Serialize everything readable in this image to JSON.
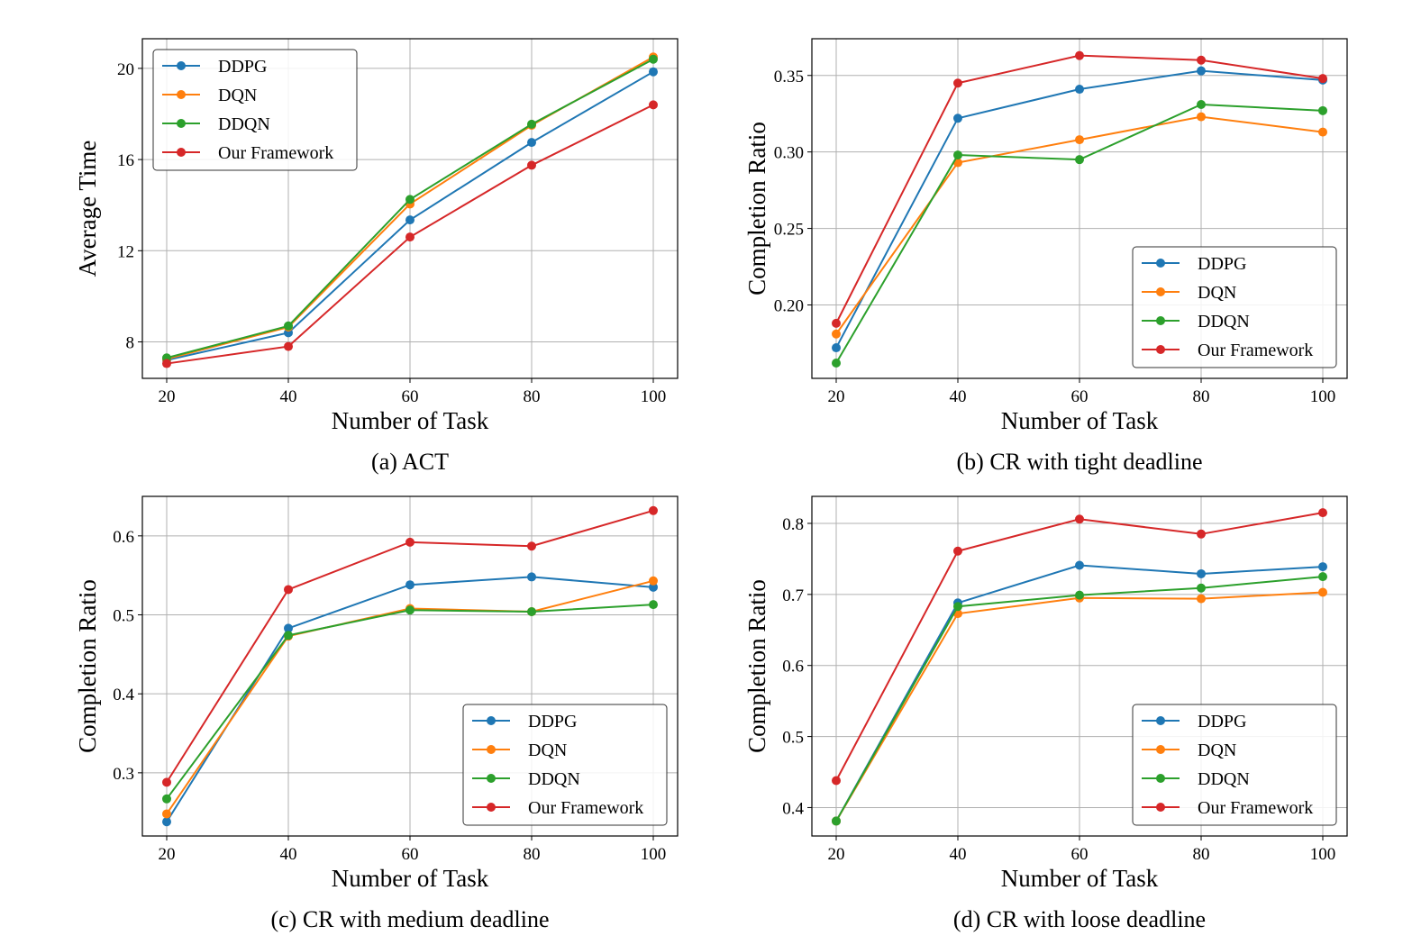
{
  "colors": {
    "DDPG": "#1f77b4",
    "DQN": "#ff7f0e",
    "DDQN": "#2ca02c",
    "Our Framework": "#d62728",
    "grid": "#b0b0b0"
  },
  "chart_data": [
    {
      "type": "line",
      "caption": "(a) ACT",
      "xlabel": "Number of Task",
      "ylabel": "Average Time",
      "x": [
        20,
        40,
        60,
        80,
        100
      ],
      "xlim": [
        16,
        104
      ],
      "ylim": [
        6.4,
        21.3
      ],
      "yticks": [
        8,
        12,
        16,
        20
      ],
      "ytick_labels": [
        "8",
        "12",
        "16",
        "20"
      ],
      "legend_position": "upper-left",
      "grid": true,
      "series": [
        {
          "name": "DDPG",
          "values": [
            7.2,
            8.4,
            13.35,
            16.75,
            19.85
          ]
        },
        {
          "name": "DQN",
          "values": [
            7.25,
            8.65,
            14.05,
            17.5,
            20.5
          ]
        },
        {
          "name": "DDQN",
          "values": [
            7.3,
            8.7,
            14.25,
            17.55,
            20.4
          ]
        },
        {
          "name": "Our Framework",
          "values": [
            7.05,
            7.8,
            12.6,
            15.75,
            18.4
          ]
        }
      ]
    },
    {
      "type": "line",
      "caption": "(b) CR with tight deadline",
      "xlabel": "Number of Task",
      "ylabel": "Completion Ratio",
      "x": [
        20,
        40,
        60,
        80,
        100
      ],
      "xlim": [
        16,
        104
      ],
      "ylim": [
        0.152,
        0.374
      ],
      "yticks": [
        0.2,
        0.25,
        0.3,
        0.35
      ],
      "ytick_labels": [
        "0.20",
        "0.25",
        "0.30",
        "0.35"
      ],
      "legend_position": "lower-right",
      "grid": true,
      "series": [
        {
          "name": "DDPG",
          "values": [
            0.172,
            0.322,
            0.341,
            0.353,
            0.347
          ]
        },
        {
          "name": "DQN",
          "values": [
            0.181,
            0.293,
            0.308,
            0.323,
            0.313
          ]
        },
        {
          "name": "DDQN",
          "values": [
            0.162,
            0.298,
            0.295,
            0.331,
            0.327
          ]
        },
        {
          "name": "Our Framework",
          "values": [
            0.188,
            0.345,
            0.363,
            0.36,
            0.348
          ]
        }
      ]
    },
    {
      "type": "line",
      "caption": "(c) CR with medium deadline",
      "xlabel": "Number of Task",
      "ylabel": "Completion Ratio",
      "x": [
        20,
        40,
        60,
        80,
        100
      ],
      "xlim": [
        16,
        104
      ],
      "ylim": [
        0.22,
        0.65
      ],
      "yticks": [
        0.3,
        0.4,
        0.5,
        0.6
      ],
      "ytick_labels": [
        "0.3",
        "0.4",
        "0.5",
        "0.6"
      ],
      "legend_position": "lower-right",
      "grid": true,
      "series": [
        {
          "name": "DDPG",
          "values": [
            0.238,
            0.483,
            0.538,
            0.548,
            0.535
          ]
        },
        {
          "name": "DQN",
          "values": [
            0.248,
            0.473,
            0.508,
            0.504,
            0.543
          ]
        },
        {
          "name": "DDQN",
          "values": [
            0.267,
            0.474,
            0.506,
            0.504,
            0.513
          ]
        },
        {
          "name": "Our Framework",
          "values": [
            0.288,
            0.532,
            0.592,
            0.587,
            0.632
          ]
        }
      ]
    },
    {
      "type": "line",
      "caption": "(d) CR with loose deadline",
      "xlabel": "Number of Task",
      "ylabel": "Completion Ratio",
      "x": [
        20,
        40,
        60,
        80,
        100
      ],
      "xlim": [
        16,
        104
      ],
      "ylim": [
        0.36,
        0.838
      ],
      "yticks": [
        0.4,
        0.5,
        0.6,
        0.7,
        0.8
      ],
      "ytick_labels": [
        "0.4",
        "0.5",
        "0.6",
        "0.7",
        "0.8"
      ],
      "legend_position": "lower-right",
      "grid": true,
      "series": [
        {
          "name": "DDPG",
          "values": [
            0.381,
            0.688,
            0.741,
            0.729,
            0.739
          ]
        },
        {
          "name": "DQN",
          "values": [
            0.381,
            0.673,
            0.695,
            0.694,
            0.703
          ]
        },
        {
          "name": "DDQN",
          "values": [
            0.381,
            0.683,
            0.699,
            0.709,
            0.725
          ]
        },
        {
          "name": "Our Framework",
          "values": [
            0.438,
            0.761,
            0.806,
            0.785,
            0.815
          ]
        }
      ]
    }
  ]
}
